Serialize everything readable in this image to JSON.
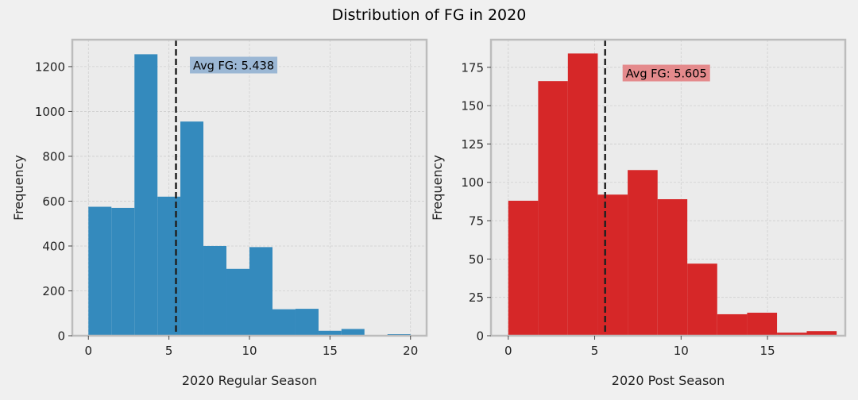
{
  "figure": {
    "title": "Distribution of FG in 2020"
  },
  "colors": {
    "background": "#f0f0f0",
    "plot_bg": "#ebebeb",
    "regular": "#348abd",
    "post": "#d62728",
    "regular_label_bg": "#9bb7d4",
    "post_label_bg": "#e48a8c",
    "mean_line": "#222222",
    "grid": "#cfcfcf",
    "spine": "#bcbcbc"
  },
  "chart_data": [
    {
      "type": "bar",
      "subtype": "histogram",
      "title": "",
      "xlabel": "2020 Regular Season",
      "ylabel": "Frequency",
      "xlim": [
        -1,
        21
      ],
      "ylim": [
        0,
        1320
      ],
      "xticks": [
        0,
        5,
        10,
        15,
        20
      ],
      "yticks": [
        0,
        200,
        400,
        600,
        800,
        1000,
        1200
      ],
      "grid": true,
      "bin_edges": [
        0,
        1.43,
        2.86,
        4.29,
        5.71,
        7.14,
        8.57,
        10,
        11.43,
        12.86,
        14.29,
        15.71,
        17.14,
        18.57,
        20
      ],
      "values": [
        575,
        570,
        1255,
        620,
        955,
        400,
        298,
        395,
        118,
        120,
        22,
        30,
        3,
        7
      ],
      "mean": 5.438,
      "annotation": "Avg FG: 5.438",
      "annotation_pos": [
        6.5,
        1205
      ]
    },
    {
      "type": "bar",
      "subtype": "histogram",
      "title": "",
      "xlabel": "2020 Post Season",
      "ylabel": "Frequency",
      "xlim": [
        -1,
        19.5
      ],
      "ylim": [
        0,
        193
      ],
      "xticks": [
        0,
        5,
        10,
        15
      ],
      "yticks": [
        0,
        25,
        50,
        75,
        100,
        125,
        150,
        175
      ],
      "grid": true,
      "bin_edges": [
        0,
        1.73,
        3.45,
        5.18,
        6.91,
        8.64,
        10.36,
        12.09,
        13.82,
        15.55,
        17.27,
        19
      ],
      "values": [
        88,
        166,
        184,
        92,
        108,
        89,
        47,
        14,
        15,
        2,
        3
      ],
      "mean": 5.605,
      "annotation": "Avg FG: 5.605",
      "annotation_pos": [
        6.8,
        171
      ]
    }
  ]
}
